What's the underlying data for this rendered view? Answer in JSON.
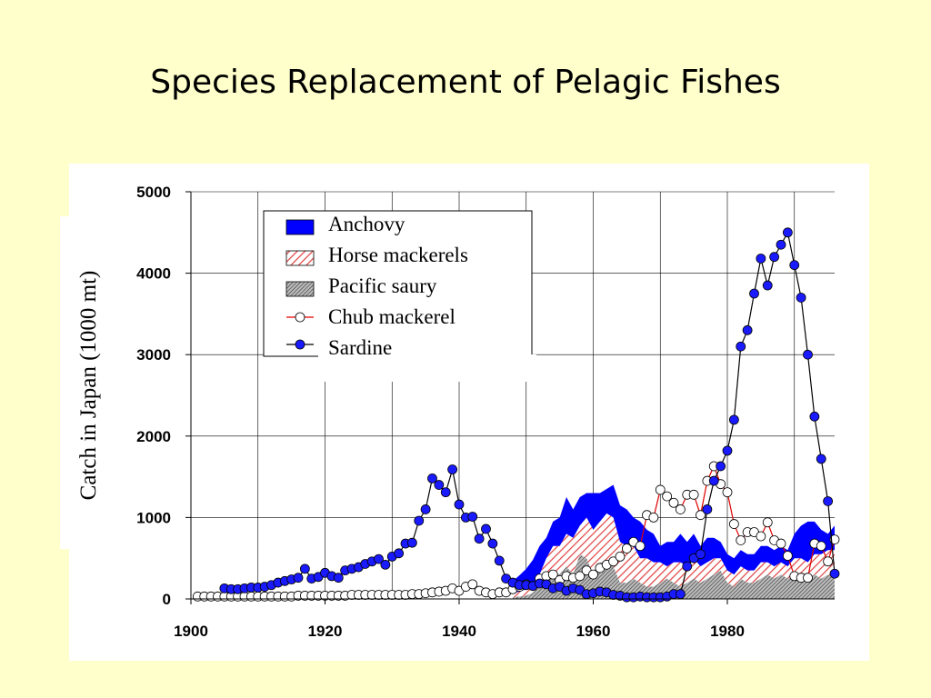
{
  "slide": {
    "title": "Species Replacement of Pelagic Fishes"
  },
  "colors": {
    "background": "#FFFFCC",
    "anchovy": "#0000FF",
    "horse_mackerel_hatch": "#E04040",
    "saury_hatch": "#555555",
    "chub_line": "#E00000",
    "sardine_fill": "#1A1AFF"
  },
  "chart_data": {
    "type": "area",
    "title": "",
    "xlabel": "",
    "ylabel": "Catch in Japan (1000 mt)",
    "xlim": [
      1900,
      1996
    ],
    "ylim": [
      0,
      5000
    ],
    "x_ticks": [
      "1900",
      "1920",
      "1940",
      "1960",
      "1980"
    ],
    "y_ticks": [
      "0",
      "1000",
      "2000",
      "3000",
      "4000",
      "5000"
    ],
    "grid": true,
    "legend_position": "top-left",
    "legend": [
      "Anchovy",
      "Horse mackerels",
      "Pacific saury",
      "Chub mackerel",
      "Sardine"
    ],
    "stacked_areas": {
      "years": [
        1948,
        1949,
        1950,
        1951,
        1952,
        1953,
        1954,
        1955,
        1956,
        1957,
        1958,
        1959,
        1960,
        1961,
        1962,
        1963,
        1964,
        1965,
        1966,
        1967,
        1968,
        1969,
        1970,
        1971,
        1972,
        1973,
        1974,
        1975,
        1976,
        1977,
        1978,
        1979,
        1980,
        1981,
        1982,
        1983,
        1984,
        1985,
        1986,
        1987,
        1988,
        1989,
        1990,
        1991,
        1992,
        1993,
        1994,
        1995,
        1996
      ],
      "series": [
        {
          "name": "Pacific saury",
          "values": [
            20,
            30,
            40,
            80,
            150,
            250,
            350,
            300,
            400,
            300,
            550,
            500,
            300,
            450,
            450,
            400,
            200,
            200,
            250,
            200,
            150,
            150,
            200,
            250,
            200,
            150,
            200,
            250,
            200,
            250,
            300,
            350,
            200,
            150,
            250,
            200,
            200,
            250,
            300,
            250,
            300,
            250,
            300,
            200,
            250,
            300,
            250,
            300,
            250
          ]
        },
        {
          "name": "Horse mackerels",
          "values": [
            50,
            60,
            80,
            100,
            150,
            250,
            300,
            350,
            400,
            450,
            350,
            500,
            550,
            500,
            600,
            600,
            500,
            450,
            400,
            300,
            350,
            300,
            250,
            150,
            250,
            300,
            200,
            250,
            200,
            200,
            200,
            150,
            150,
            150,
            150,
            150,
            150,
            200,
            150,
            150,
            150,
            150,
            200,
            300,
            200,
            250,
            300,
            300,
            350
          ]
        },
        {
          "name": "Anchovy",
          "values": [
            150,
            200,
            250,
            300,
            350,
            250,
            300,
            350,
            450,
            350,
            350,
            300,
            450,
            350,
            300,
            400,
            450,
            450,
            350,
            450,
            350,
            350,
            200,
            300,
            250,
            350,
            300,
            300,
            250,
            300,
            250,
            200,
            200,
            200,
            200,
            200,
            200,
            200,
            200,
            200,
            200,
            200,
            300,
            400,
            500,
            400,
            300,
            200,
            300
          ]
        }
      ]
    },
    "chub_mackerel": {
      "years": [
        1901,
        1902,
        1903,
        1904,
        1905,
        1906,
        1907,
        1908,
        1909,
        1910,
        1911,
        1912,
        1913,
        1914,
        1915,
        1916,
        1917,
        1918,
        1919,
        1920,
        1921,
        1922,
        1923,
        1924,
        1925,
        1926,
        1927,
        1928,
        1929,
        1930,
        1931,
        1932,
        1933,
        1934,
        1935,
        1936,
        1937,
        1938,
        1939,
        1940,
        1941,
        1942,
        1943,
        1944,
        1945,
        1946,
        1947,
        1948,
        1949,
        1950,
        1951,
        1952,
        1953,
        1954,
        1955,
        1956,
        1957,
        1958,
        1959,
        1960,
        1961,
        1962,
        1963,
        1964,
        1965,
        1966,
        1967,
        1968,
        1969,
        1970,
        1971,
        1972,
        1973,
        1974,
        1975,
        1976,
        1977,
        1978,
        1979,
        1980,
        1981,
        1982,
        1983,
        1984,
        1985,
        1986,
        1987,
        1988,
        1989,
        1990,
        1991,
        1992,
        1993,
        1994,
        1995,
        1996
      ],
      "values": [
        30,
        30,
        30,
        30,
        30,
        30,
        30,
        30,
        30,
        30,
        30,
        30,
        30,
        30,
        30,
        40,
        40,
        40,
        40,
        40,
        40,
        40,
        40,
        50,
        50,
        50,
        50,
        50,
        50,
        50,
        50,
        50,
        60,
        60,
        70,
        80,
        90,
        100,
        130,
        100,
        150,
        180,
        100,
        80,
        60,
        80,
        80,
        120,
        150,
        180,
        160,
        250,
        280,
        300,
        230,
        280,
        260,
        280,
        350,
        300,
        380,
        420,
        460,
        520,
        620,
        700,
        650,
        1030,
        1000,
        1340,
        1260,
        1180,
        1100,
        1280,
        1280,
        1030,
        1450,
        1630,
        1410,
        1310,
        920,
        720,
        820,
        820,
        770,
        940,
        720,
        680,
        530,
        280,
        260,
        260,
        680,
        650,
        460,
        730
      ]
    },
    "sardine": {
      "years": [
        1905,
        1906,
        1907,
        1908,
        1909,
        1910,
        1911,
        1912,
        1913,
        1914,
        1915,
        1916,
        1917,
        1918,
        1919,
        1920,
        1921,
        1922,
        1923,
        1924,
        1925,
        1926,
        1927,
        1928,
        1929,
        1930,
        1931,
        1932,
        1933,
        1934,
        1935,
        1936,
        1937,
        1938,
        1939,
        1940,
        1941,
        1942,
        1943,
        1944,
        1945,
        1946,
        1947,
        1948,
        1949,
        1950,
        1951,
        1952,
        1953,
        1954,
        1955,
        1956,
        1957,
        1958,
        1959,
        1960,
        1961,
        1962,
        1963,
        1964,
        1965,
        1966,
        1967,
        1968,
        1969,
        1970,
        1971,
        1972,
        1973,
        1974,
        1975,
        1976,
        1977,
        1978,
        1979,
        1980,
        1981,
        1982,
        1983,
        1984,
        1985,
        1986,
        1987,
        1988,
        1989,
        1990,
        1991,
        1992,
        1993,
        1994,
        1995,
        1996
      ],
      "values": [
        130,
        120,
        120,
        130,
        140,
        140,
        150,
        170,
        200,
        220,
        240,
        260,
        370,
        250,
        270,
        320,
        280,
        260,
        350,
        370,
        390,
        430,
        460,
        490,
        420,
        520,
        560,
        680,
        690,
        960,
        1100,
        1480,
        1400,
        1310,
        1590,
        1160,
        1000,
        1010,
        740,
        860,
        680,
        470,
        250,
        200,
        170,
        170,
        160,
        190,
        180,
        130,
        150,
        100,
        130,
        110,
        60,
        70,
        90,
        80,
        50,
        40,
        20,
        20,
        30,
        20,
        20,
        20,
        30,
        60,
        60,
        400,
        500,
        550,
        1100,
        1450,
        1630,
        1820,
        2200,
        3100,
        3300,
        3750,
        4180,
        3850,
        4200,
        4350,
        4500,
        4100,
        3700,
        3000,
        2240,
        1720,
        1200,
        310
      ]
    }
  }
}
